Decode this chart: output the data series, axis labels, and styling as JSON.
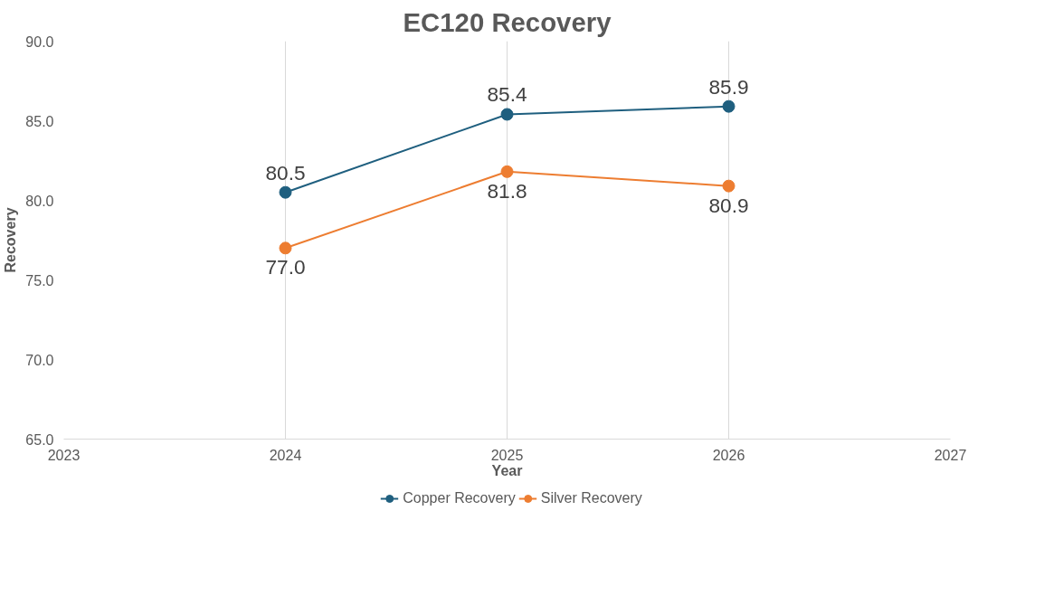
{
  "chart_data": {
    "type": "line",
    "title": "EC120 Recovery",
    "xlabel": "Year",
    "ylabel": "Recovery",
    "x": [
      2024,
      2025,
      2026
    ],
    "series": [
      {
        "name": "Copper Recovery",
        "color": "#1f5f7f",
        "values": [
          80.5,
          85.4,
          85.9
        ],
        "value_labels": [
          "80.5",
          "85.4",
          "85.9"
        ]
      },
      {
        "name": "Silver Recovery",
        "color": "#ed7d31",
        "values": [
          77.0,
          81.8,
          80.9
        ],
        "value_labels": [
          "77.0",
          "81.8",
          "80.9"
        ]
      }
    ],
    "xlim": [
      2023,
      2027
    ],
    "xticks": [
      2023,
      2024,
      2025,
      2026,
      2027
    ],
    "ylim": [
      65,
      90
    ],
    "yticks": [
      {
        "value": 65,
        "label": "65.0"
      },
      {
        "value": 70,
        "label": "70.0"
      },
      {
        "value": 75,
        "label": "75.0"
      },
      {
        "value": 80,
        "label": "80.0"
      },
      {
        "value": 85,
        "label": "85.0"
      },
      {
        "value": 90,
        "label": "90.0"
      }
    ],
    "grid": "x",
    "legend": "bottom",
    "marker": "circle",
    "line_style": "solid"
  }
}
